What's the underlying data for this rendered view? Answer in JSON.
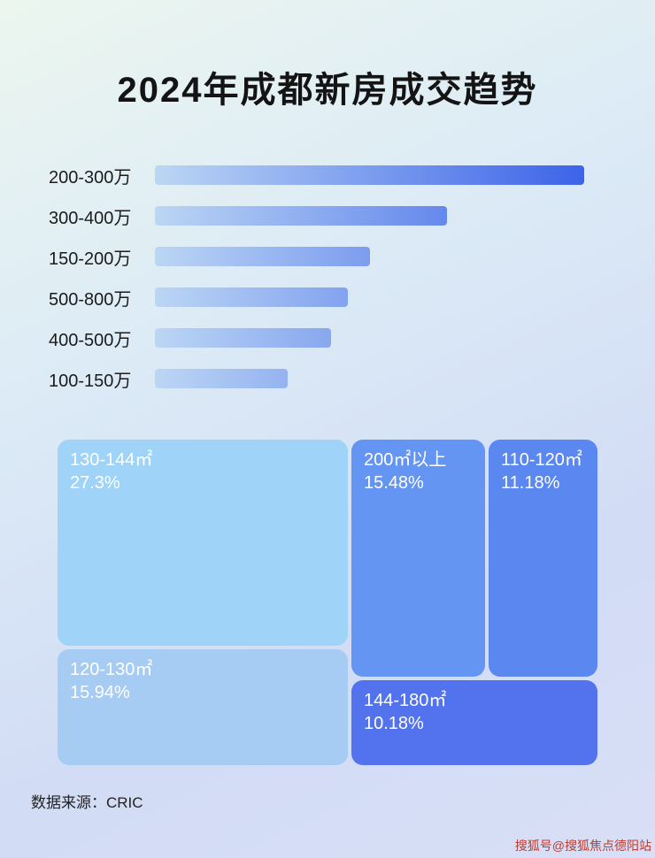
{
  "title": "2024年成都新房成交趋势",
  "source": "数据来源：CRIC",
  "watermark": {
    "text": "搜狐号@搜狐焦点德阳站",
    "color": "#c03a2b"
  },
  "chart_data": [
    {
      "type": "bar",
      "orientation": "horizontal",
      "title": "2024年成都新房成交趋势",
      "categories": [
        "200-300万",
        "300-400万",
        "150-200万",
        "500-800万",
        "400-500万",
        "100-150万"
      ],
      "values": [
        100,
        68,
        50,
        45,
        41,
        31
      ],
      "value_note": "relative bar length, percent of longest bar (no numeric axis shown)",
      "xlim": [
        0,
        100
      ],
      "grid": false,
      "legend": false,
      "bar_gradient": [
        "#bcd6f4",
        "#3c63e9"
      ]
    },
    {
      "type": "treemap",
      "title": "",
      "blocks": [
        {
          "label": "130-144㎡",
          "value": 27.3,
          "display": "27.3%",
          "color": "#9fd3f7"
        },
        {
          "label": "200㎡以上",
          "value": 15.48,
          "display": "15.48%",
          "color": "#6495f2"
        },
        {
          "label": "110-120㎡",
          "value": 11.18,
          "display": "11.18%",
          "color": "#5b87f0"
        },
        {
          "label": "120-130㎡",
          "value": 15.94,
          "display": "15.94%",
          "color": "#a6ccf4"
        },
        {
          "label": "144-180㎡",
          "value": 10.18,
          "display": "10.18%",
          "color": "#5272ee"
        }
      ]
    }
  ]
}
